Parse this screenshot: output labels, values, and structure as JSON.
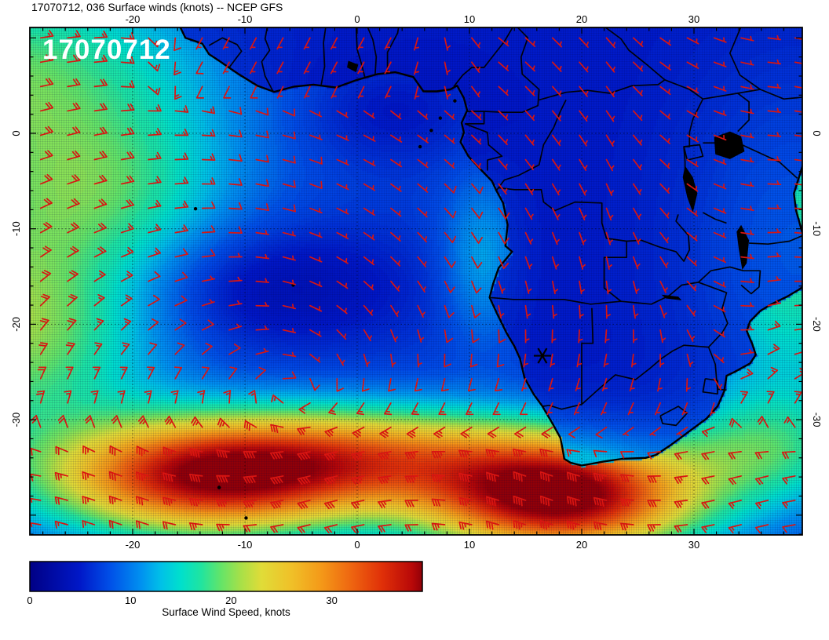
{
  "title": "17070712, 036 Surface winds (knots) -- NCEP GFS",
  "timestamp": "17070712",
  "colorbar": {
    "label": "Surface Wind Speed, knots",
    "ticks": [
      0,
      10,
      20,
      30
    ],
    "min": 0,
    "max": 39
  },
  "chart_data": {
    "type": "heatmap",
    "title": "17070712, 036 Surface winds (knots) -- NCEP GFS",
    "model": "NCEP GFS",
    "run": "17070712",
    "forecast_hour": "036",
    "variable": "Surface winds",
    "units": "knots",
    "lon_ticks": [
      -20,
      -10,
      0,
      10,
      20,
      30
    ],
    "lat_ticks": [
      0,
      -10,
      -20,
      -30
    ],
    "lon_range": [
      -29.2,
      39.7
    ],
    "lat_range": [
      11.1,
      -42.1
    ],
    "grid": "dotted",
    "barb_color": "#d81512",
    "colormap": [
      [
        0,
        "#000085"
      ],
      [
        5,
        "#0018c8"
      ],
      [
        8,
        "#0050e8"
      ],
      [
        11,
        "#0090f0"
      ],
      [
        13,
        "#00c0e8"
      ],
      [
        15,
        "#00e0cc"
      ],
      [
        17,
        "#20e4a0"
      ],
      [
        19,
        "#64e468"
      ],
      [
        21,
        "#a8e048"
      ],
      [
        23,
        "#e0dc38"
      ],
      [
        26,
        "#f0c028"
      ],
      [
        29,
        "#f49818"
      ],
      [
        32,
        "#ee6410"
      ],
      [
        35,
        "#e03008"
      ],
      [
        38,
        "#b80808"
      ],
      [
        40,
        "#900008"
      ]
    ],
    "field_model": {
      "base": 7,
      "bumps": [
        [
          12,
          -32,
          13,
          6,
          8
        ],
        [
          14,
          -31,
          9,
          -20,
          9
        ],
        [
          30,
          -13,
          10,
          -36,
          4.2
        ],
        [
          34,
          18,
          8.5,
          -38,
          4.2
        ],
        [
          16,
          2,
          11,
          -33.5,
          3.6
        ],
        [
          10,
          39,
          7,
          -12,
          13
        ],
        [
          -2.5,
          2.5,
          6,
          2.5,
          4
        ],
        [
          7,
          -22,
          8,
          -6,
          6
        ],
        [
          -4,
          -8,
          9,
          -16,
          4.5
        ],
        [
          5,
          11,
          2.5,
          -13,
          6
        ],
        [
          8,
          36,
          6,
          -33,
          4
        ]
      ]
    },
    "flow_model": {
      "high_center_w": [
        -6,
        -27
      ],
      "high_center_e": [
        44,
        -29
      ],
      "westerly_lat_start": -29,
      "westerly_blend_deg": 5
    },
    "barb_grid": {
      "lon0": -28.2,
      "dlon": 2.4,
      "lat0": 10.0,
      "dlat": 2.55,
      "cols": 29,
      "rows": 21
    }
  },
  "geo": {
    "coastline": [
      [
        -15.8,
        11.2
      ],
      [
        -15.3,
        10.0
      ],
      [
        -13.8,
        9.4
      ],
      [
        -13.2,
        8.3
      ],
      [
        -12.3,
        7.6
      ],
      [
        -10.7,
        6.3
      ],
      [
        -8.9,
        5.0
      ],
      [
        -7.4,
        4.35
      ],
      [
        -5.6,
        4.9
      ],
      [
        -3.9,
        5.1
      ],
      [
        -1.9,
        4.8
      ],
      [
        0.0,
        5.6
      ],
      [
        1.8,
        6.2
      ],
      [
        3.4,
        6.4
      ],
      [
        5.0,
        5.9
      ],
      [
        5.9,
        4.4
      ],
      [
        7.1,
        4.4
      ],
      [
        8.3,
        4.6
      ],
      [
        8.9,
        5.0
      ],
      [
        9.5,
        3.7
      ],
      [
        9.8,
        2.4
      ],
      [
        9.3,
        1.1
      ],
      [
        9.5,
        0.1
      ],
      [
        9.2,
        -0.9
      ],
      [
        9.9,
        -2.4
      ],
      [
        11.1,
        -3.9
      ],
      [
        12.0,
        -5.0
      ],
      [
        12.4,
        -6.0
      ],
      [
        13.0,
        -7.3
      ],
      [
        13.4,
        -9.6
      ],
      [
        13.2,
        -11.8
      ],
      [
        13.8,
        -12.4
      ],
      [
        12.6,
        -14.1
      ],
      [
        12.1,
        -15.8
      ],
      [
        11.8,
        -17.2
      ],
      [
        12.5,
        -19.0
      ],
      [
        13.3,
        -20.9
      ],
      [
        14.0,
        -22.3
      ],
      [
        14.5,
        -23.6
      ],
      [
        14.9,
        -25.6
      ],
      [
        15.7,
        -27.3
      ],
      [
        16.5,
        -28.6
      ],
      [
        17.4,
        -30.4
      ],
      [
        18.1,
        -31.9
      ],
      [
        18.3,
        -33.1
      ],
      [
        18.45,
        -34.1
      ],
      [
        19.0,
        -34.5
      ],
      [
        20.0,
        -34.8
      ],
      [
        21.9,
        -34.4
      ],
      [
        23.6,
        -34.1
      ],
      [
        25.7,
        -34.0
      ],
      [
        26.6,
        -33.7
      ],
      [
        28.0,
        -32.6
      ],
      [
        29.6,
        -31.2
      ],
      [
        31.1,
        -29.9
      ],
      [
        32.1,
        -28.6
      ],
      [
        32.7,
        -27.0
      ],
      [
        32.9,
        -25.4
      ],
      [
        33.6,
        -25.0
      ],
      [
        35.0,
        -24.1
      ],
      [
        35.5,
        -23.2
      ],
      [
        35.2,
        -22.1
      ],
      [
        34.7,
        -20.7
      ],
      [
        35.0,
        -19.7
      ],
      [
        35.9,
        -18.6
      ],
      [
        36.9,
        -17.9
      ],
      [
        38.3,
        -17.1
      ],
      [
        39.3,
        -16.4
      ],
      [
        40.7,
        -15.3
      ],
      [
        40.5,
        -12.6
      ],
      [
        39.7,
        -10.6
      ],
      [
        39.1,
        -8.1
      ],
      [
        38.9,
        -6.3
      ],
      [
        39.3,
        -4.8
      ],
      [
        39.7,
        -3.3
      ],
      [
        40.3,
        -2.1
      ],
      [
        41.4,
        -0.4
      ],
      [
        42.6,
        4.0
      ],
      [
        43.0,
        12.0
      ],
      [
        10.0,
        12.5
      ],
      [
        -15.5,
        11.8
      ]
    ],
    "borders": [
      [
        [
          -3.2,
          5.1
        ],
        [
          -2.9,
          7.0
        ],
        [
          -3.0,
          9.5
        ],
        [
          -2.8,
          11.2
        ]
      ],
      [
        [
          0.7,
          5.8
        ],
        [
          0.4,
          7.2
        ],
        [
          0.0,
          8.8
        ],
        [
          -0.1,
          11.2
        ]
      ],
      [
        [
          1.6,
          6.2
        ],
        [
          1.7,
          8.0
        ],
        [
          1.4,
          9.8
        ],
        [
          0.9,
          11.2
        ]
      ],
      [
        [
          2.7,
          6.4
        ],
        [
          2.7,
          8.5
        ],
        [
          3.6,
          10.5
        ],
        [
          3.7,
          11.2
        ]
      ],
      [
        [
          8.6,
          4.9
        ],
        [
          9.4,
          6.1
        ],
        [
          10.2,
          6.9
        ],
        [
          11.3,
          6.9
        ],
        [
          12.1,
          8.1
        ],
        [
          13.1,
          9.6
        ],
        [
          13.9,
          11.2
        ]
      ],
      [
        [
          -7.5,
          4.4
        ],
        [
          -8.2,
          6.0
        ],
        [
          -8.5,
          7.5
        ],
        [
          -7.8,
          8.7
        ],
        [
          -8.2,
          9.9
        ],
        [
          -8.0,
          11.2
        ]
      ],
      [
        [
          -11.4,
          6.9
        ],
        [
          -10.7,
          8.0
        ],
        [
          -10.3,
          8.6
        ],
        [
          -10.7,
          9.3
        ],
        [
          -12.0,
          10.0
        ],
        [
          -13.2,
          9.2
        ]
      ],
      [
        [
          9.8,
          2.3
        ],
        [
          11.3,
          2.3
        ],
        [
          11.3,
          1.0
        ],
        [
          9.6,
          1.0
        ]
      ],
      [
        [
          11.3,
          2.3
        ],
        [
          13.0,
          2.2
        ],
        [
          14.7,
          2.2
        ],
        [
          16.1,
          2.9
        ],
        [
          16.2,
          4.6
        ],
        [
          14.7,
          6.2
        ],
        [
          14.6,
          8.0
        ],
        [
          15.2,
          10.0
        ],
        [
          14.2,
          11.2
        ]
      ],
      [
        [
          16.2,
          3.5
        ],
        [
          18.6,
          4.3
        ],
        [
          20.5,
          4.5
        ],
        [
          22.5,
          4.2
        ],
        [
          24.5,
          5.0
        ],
        [
          26.8,
          5.1
        ],
        [
          27.4,
          5.6
        ]
      ],
      [
        [
          22.0,
          11.2
        ],
        [
          23.5,
          9.9
        ],
        [
          24.2,
          8.7
        ],
        [
          25.9,
          7.1
        ],
        [
          27.4,
          5.6
        ]
      ],
      [
        [
          27.4,
          5.6
        ],
        [
          29.6,
          4.6
        ],
        [
          30.8,
          3.6
        ],
        [
          33.9,
          4.2
        ],
        [
          35.9,
          4.6
        ],
        [
          38.0,
          3.6
        ],
        [
          40.8,
          3.9
        ],
        [
          41.9,
          0.9
        ]
      ],
      [
        [
          34.2,
          11.2
        ],
        [
          33.2,
          8.4
        ],
        [
          34.1,
          6.1
        ],
        [
          35.9,
          4.6
        ]
      ],
      [
        [
          12.4,
          -6.0
        ],
        [
          13.1,
          -4.9
        ],
        [
          14.4,
          -4.4
        ],
        [
          16.2,
          -3.3
        ],
        [
          16.6,
          -1.2
        ],
        [
          17.5,
          0.6
        ],
        [
          18.1,
          2.3
        ],
        [
          18.6,
          3.5
        ]
      ],
      [
        [
          9.6,
          1.0
        ],
        [
          11.6,
          0.1
        ],
        [
          11.7,
          -1.2
        ],
        [
          12.9,
          -2.4
        ],
        [
          11.6,
          -2.8
        ],
        [
          11.6,
          -3.9
        ]
      ],
      [
        [
          12.6,
          -5.7
        ],
        [
          14.0,
          -5.9
        ],
        [
          16.4,
          -5.9
        ],
        [
          16.6,
          -7.2
        ],
        [
          17.6,
          -8.1
        ],
        [
          19.4,
          -7.2
        ],
        [
          21.8,
          -7.3
        ],
        [
          21.8,
          -9.4
        ],
        [
          22.2,
          -11.0
        ],
        [
          24.0,
          -11.3
        ]
      ],
      [
        [
          24.0,
          -11.3
        ],
        [
          25.3,
          -11.2
        ],
        [
          26.9,
          -11.9
        ],
        [
          28.4,
          -12.4
        ],
        [
          29.1,
          -13.4
        ],
        [
          29.6,
          -12.2
        ],
        [
          29.5,
          -10.7
        ],
        [
          28.4,
          -9.2
        ],
        [
          28.6,
          -8.5
        ]
      ],
      [
        [
          30.8,
          -8.3
        ],
        [
          31.9,
          -9.0
        ],
        [
          32.9,
          -9.4
        ]
      ],
      [
        [
          24.0,
          -11.3
        ],
        [
          24.0,
          -13.0
        ],
        [
          22.0,
          -13.0
        ],
        [
          22.0,
          -16.2
        ],
        [
          23.5,
          -17.6
        ]
      ],
      [
        [
          11.8,
          -17.2
        ],
        [
          13.9,
          -17.4
        ],
        [
          18.4,
          -17.4
        ],
        [
          20.8,
          -17.9
        ],
        [
          23.5,
          -17.6
        ],
        [
          25.3,
          -17.8
        ]
      ],
      [
        [
          20.9,
          -18.3
        ],
        [
          21.0,
          -22.0
        ],
        [
          20.0,
          -22.0
        ],
        [
          20.0,
          -28.4
        ]
      ],
      [
        [
          20.0,
          -28.4
        ],
        [
          18.2,
          -28.9
        ],
        [
          17.1,
          -28.5
        ],
        [
          16.5,
          -28.6
        ]
      ],
      [
        [
          20.0,
          -28.4
        ],
        [
          21.5,
          -26.8
        ],
        [
          23.0,
          -25.3
        ],
        [
          24.8,
          -25.8
        ],
        [
          26.0,
          -24.7
        ],
        [
          27.1,
          -23.6
        ],
        [
          28.1,
          -22.8
        ],
        [
          29.1,
          -22.2
        ],
        [
          31.3,
          -22.4
        ]
      ],
      [
        [
          31.3,
          -22.4
        ],
        [
          31.9,
          -24.2
        ],
        [
          32.0,
          -25.6
        ],
        [
          32.1,
          -26.8
        ],
        [
          32.9,
          -26.9
        ]
      ],
      [
        [
          31.0,
          -25.7
        ],
        [
          32.1,
          -25.9
        ],
        [
          32.1,
          -27.3
        ],
        [
          30.8,
          -27.1
        ],
        [
          31.0,
          -25.7
        ]
      ],
      [
        [
          27.0,
          -29.6
        ],
        [
          28.6,
          -28.6
        ],
        [
          29.4,
          -29.3
        ],
        [
          28.4,
          -30.6
        ],
        [
          27.2,
          -30.4
        ],
        [
          27.0,
          -29.6
        ]
      ],
      [
        [
          25.3,
          -17.8
        ],
        [
          26.2,
          -17.9
        ],
        [
          27.8,
          -17.0
        ],
        [
          28.9,
          -15.9
        ],
        [
          30.4,
          -15.6
        ]
      ],
      [
        [
          30.4,
          -15.6
        ],
        [
          31.5,
          -14.4
        ],
        [
          33.2,
          -14.0
        ],
        [
          34.4,
          -14.4
        ],
        [
          35.9,
          -14.4
        ],
        [
          35.8,
          -16.1
        ],
        [
          35.1,
          -16.8
        ],
        [
          34.2,
          -15.9
        ]
      ],
      [
        [
          30.4,
          -15.6
        ],
        [
          31.3,
          -16.0
        ],
        [
          32.9,
          -16.7
        ],
        [
          32.5,
          -18.4
        ],
        [
          33.0,
          -19.9
        ],
        [
          32.5,
          -20.9
        ],
        [
          31.3,
          -22.4
        ]
      ],
      [
        [
          40.3,
          -10.4
        ],
        [
          38.5,
          -11.3
        ],
        [
          36.6,
          -11.6
        ],
        [
          34.9,
          -11.5
        ]
      ],
      [
        [
          33.9,
          -1.0
        ],
        [
          37.6,
          -3.0
        ],
        [
          39.2,
          -4.7
        ]
      ],
      [
        [
          30.8,
          -1.0
        ],
        [
          33.9,
          -1.0
        ]
      ],
      [
        [
          33.9,
          0.2
        ],
        [
          34.9,
          1.4
        ],
        [
          34.9,
          3.3
        ],
        [
          33.9,
          4.2
        ]
      ],
      [
        [
          29.6,
          0.1
        ],
        [
          29.6,
          -1.4
        ],
        [
          29.1,
          -1.4
        ],
        [
          29.2,
          -3.0
        ],
        [
          29.2,
          -4.5
        ]
      ],
      [
        [
          30.8,
          3.6
        ],
        [
          29.9,
          1.5
        ],
        [
          29.6,
          0.1
        ]
      ],
      [
        [
          29.1,
          -1.4
        ],
        [
          30.5,
          -1.2
        ],
        [
          30.8,
          -2.4
        ],
        [
          29.4,
          -2.8
        ],
        [
          29.1,
          -1.4
        ]
      ]
    ],
    "lakes": [
      [
        [
          31.8,
          -0.4
        ],
        [
          33.2,
          0.2
        ],
        [
          34.2,
          -0.3
        ],
        [
          34.5,
          -1.9
        ],
        [
          33.2,
          -2.7
        ],
        [
          31.9,
          -2.2
        ]
      ],
      [
        [
          29.2,
          -3.4
        ],
        [
          29.9,
          -4.6
        ],
        [
          30.3,
          -6.3
        ],
        [
          29.9,
          -8.3
        ],
        [
          29.4,
          -6.7
        ],
        [
          29.0,
          -4.6
        ]
      ],
      [
        [
          34.2,
          -9.6
        ],
        [
          34.9,
          -11.2
        ],
        [
          34.7,
          -13.6
        ],
        [
          34.3,
          -14.3
        ],
        [
          34.0,
          -12.2
        ],
        [
          33.8,
          -10.3
        ]
      ],
      [
        [
          -0.8,
          7.6
        ],
        [
          0.1,
          7.2
        ],
        [
          -0.1,
          6.4
        ],
        [
          -0.9,
          6.9
        ]
      ],
      [
        [
          27.1,
          -16.9
        ],
        [
          28.6,
          -17.1
        ],
        [
          28.9,
          -17.5
        ],
        [
          27.5,
          -17.3
        ]
      ]
    ],
    "islands": [
      [
        8.7,
        3.4
      ],
      [
        7.4,
        1.6
      ],
      [
        6.6,
        0.3
      ],
      [
        5.6,
        -1.4
      ],
      [
        -14.4,
        -7.9
      ],
      [
        -5.7,
        -15.9
      ],
      [
        -12.3,
        -37.1
      ],
      [
        -9.9,
        -40.3
      ]
    ],
    "site_marker": {
      "lon": 16.5,
      "lat": -23.3
    }
  }
}
